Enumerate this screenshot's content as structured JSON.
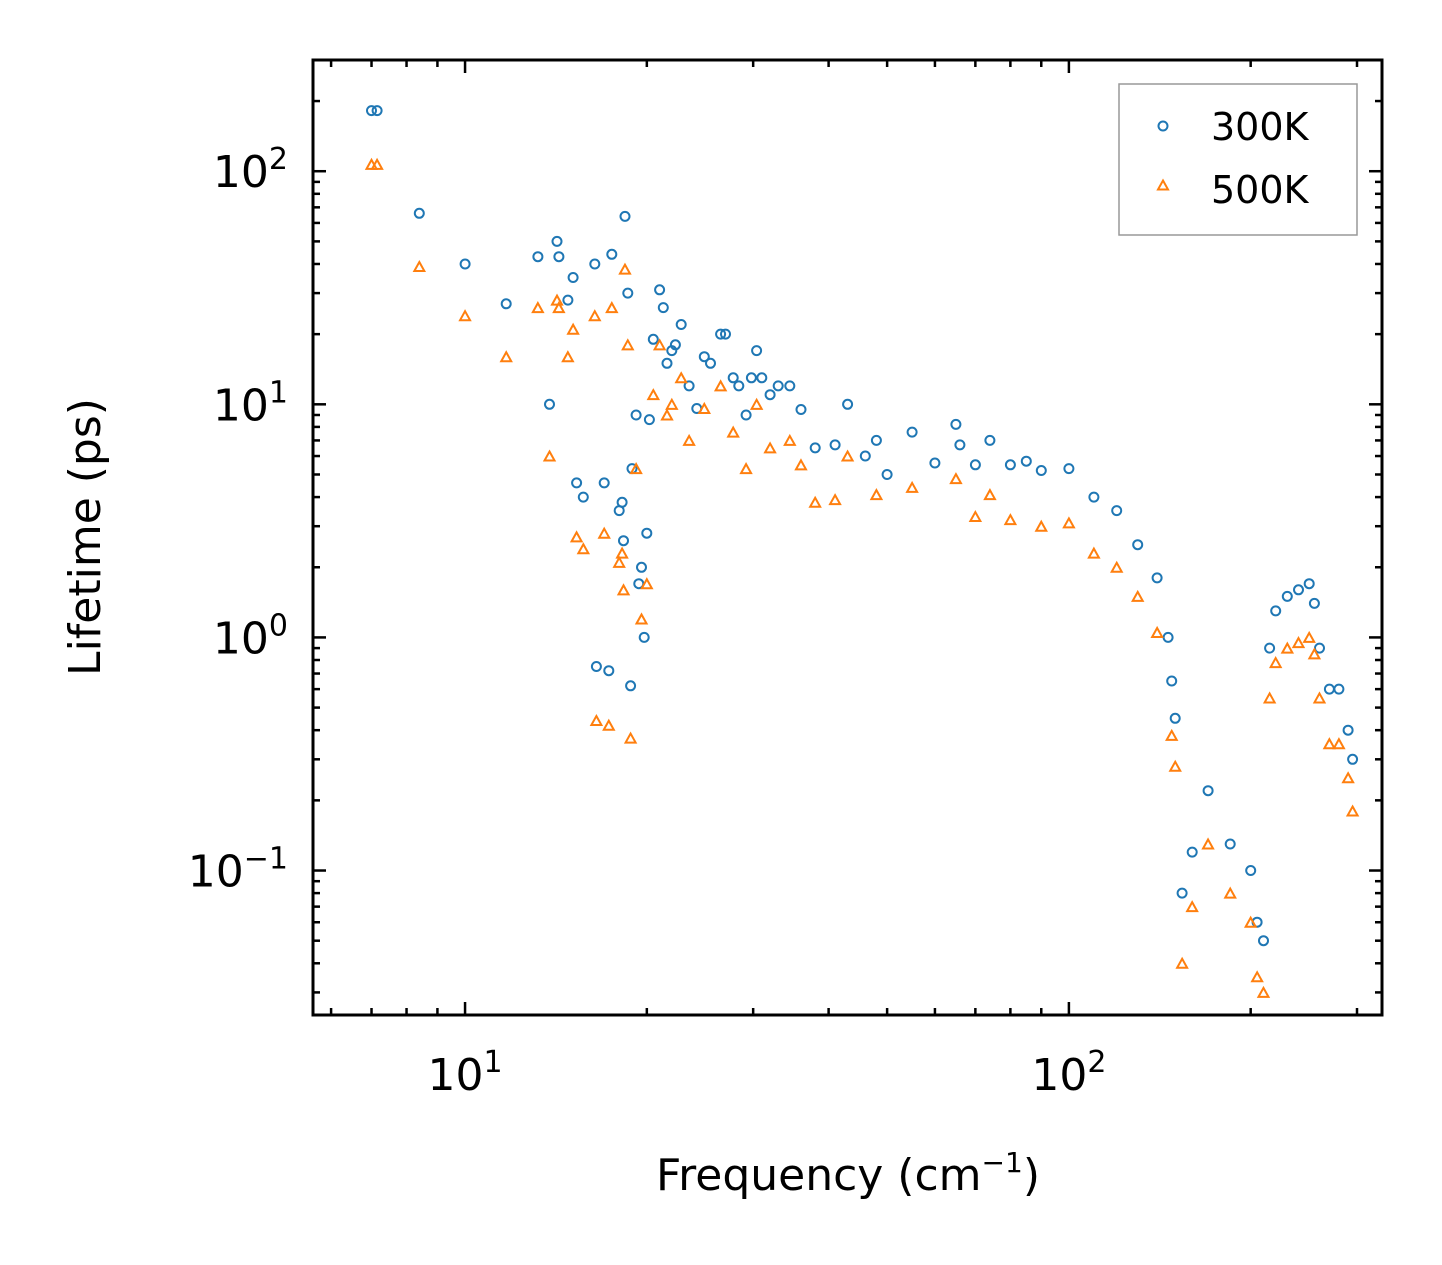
{
  "chart_data": {
    "type": "scatter",
    "title": "",
    "xlabel": "Frequency (cm",
    "xlabel_sup": "−1",
    "xlabel_end": ")",
    "ylabel": "Lifetime (ps)",
    "xscale": "log",
    "yscale": "log",
    "xlim": [
      5.6,
      330
    ],
    "ylim": [
      0.024,
      300
    ],
    "x_ticks": [
      {
        "value": 10,
        "base": "10",
        "exp": "1"
      },
      {
        "value": 100,
        "base": "10",
        "exp": "2"
      }
    ],
    "y_ticks": [
      {
        "value": 0.1,
        "base": "10",
        "exp": "−1"
      },
      {
        "value": 1,
        "base": "10",
        "exp": "0"
      },
      {
        "value": 10,
        "base": "10",
        "exp": "1"
      },
      {
        "value": 100,
        "base": "10",
        "exp": "2"
      }
    ],
    "legend_position": "top-right",
    "series": [
      {
        "name": "300K",
        "color": "#1f77b4",
        "marker": "circle",
        "points": [
          [
            7.0,
            182
          ],
          [
            7.15,
            182
          ],
          [
            8.4,
            66
          ],
          [
            10.0,
            40
          ],
          [
            11.7,
            27
          ],
          [
            13.2,
            43
          ],
          [
            13.8,
            10
          ],
          [
            14.2,
            50
          ],
          [
            14.3,
            43
          ],
          [
            14.8,
            28
          ],
          [
            15.1,
            35
          ],
          [
            15.3,
            4.6
          ],
          [
            15.7,
            4.0
          ],
          [
            16.4,
            40
          ],
          [
            16.5,
            0.75
          ],
          [
            17.0,
            4.6
          ],
          [
            17.3,
            0.72
          ],
          [
            17.5,
            44
          ],
          [
            18.0,
            3.5
          ],
          [
            18.2,
            3.8
          ],
          [
            18.3,
            2.6
          ],
          [
            18.4,
            64
          ],
          [
            18.6,
            30
          ],
          [
            18.8,
            0.62
          ],
          [
            18.9,
            5.3
          ],
          [
            19.2,
            9.0
          ],
          [
            19.4,
            1.7
          ],
          [
            19.6,
            2.0
          ],
          [
            19.8,
            1.0
          ],
          [
            20.0,
            2.8
          ],
          [
            20.2,
            8.6
          ],
          [
            20.5,
            19
          ],
          [
            21.0,
            31
          ],
          [
            21.3,
            26
          ],
          [
            21.6,
            15
          ],
          [
            22.0,
            17
          ],
          [
            22.3,
            18
          ],
          [
            22.8,
            22
          ],
          [
            23.5,
            12
          ],
          [
            24.2,
            9.6
          ],
          [
            24.9,
            16
          ],
          [
            25.5,
            15
          ],
          [
            26.5,
            20
          ],
          [
            27.0,
            20
          ],
          [
            27.8,
            13
          ],
          [
            28.4,
            12
          ],
          [
            29.2,
            9.0
          ],
          [
            29.8,
            13
          ],
          [
            30.4,
            17
          ],
          [
            31.0,
            13
          ],
          [
            32.0,
            11
          ],
          [
            33.0,
            12
          ],
          [
            34.5,
            12
          ],
          [
            36.0,
            9.5
          ],
          [
            38.0,
            6.5
          ],
          [
            41.0,
            6.7
          ],
          [
            43.0,
            10
          ],
          [
            46.0,
            6.0
          ],
          [
            48.0,
            7.0
          ],
          [
            50.0,
            5.0
          ],
          [
            55.0,
            7.6
          ],
          [
            60.0,
            5.6
          ],
          [
            65.0,
            8.2
          ],
          [
            66.0,
            6.7
          ],
          [
            70.0,
            5.5
          ],
          [
            74.0,
            7.0
          ],
          [
            80.0,
            5.5
          ],
          [
            85.0,
            5.7
          ],
          [
            90.0,
            5.2
          ],
          [
            100.0,
            5.3
          ],
          [
            110.0,
            4.0
          ],
          [
            120.0,
            3.5
          ],
          [
            130.0,
            2.5
          ],
          [
            140.0,
            1.8
          ],
          [
            146.0,
            1.0
          ],
          [
            148.0,
            0.65
          ],
          [
            150.0,
            0.45
          ],
          [
            154.0,
            0.08
          ],
          [
            160.0,
            0.12
          ],
          [
            170.0,
            0.22
          ],
          [
            185.0,
            0.13
          ],
          [
            200.0,
            0.1
          ],
          [
            205.0,
            0.06
          ],
          [
            210.0,
            0.05
          ],
          [
            215.0,
            0.9
          ],
          [
            220.0,
            1.3
          ],
          [
            230.0,
            1.5
          ],
          [
            240.0,
            1.6
          ],
          [
            250.0,
            1.7
          ],
          [
            255.0,
            1.4
          ],
          [
            260.0,
            0.9
          ],
          [
            270.0,
            0.6
          ],
          [
            280.0,
            0.6
          ],
          [
            290.0,
            0.4
          ],
          [
            295.0,
            0.3
          ]
        ]
      },
      {
        "name": "500K",
        "color": "#ff7f0e",
        "marker": "triangle",
        "points": [
          [
            7.0,
            107
          ],
          [
            7.15,
            107
          ],
          [
            8.4,
            39
          ],
          [
            10.0,
            24
          ],
          [
            11.7,
            16
          ],
          [
            13.2,
            26
          ],
          [
            13.8,
            6.0
          ],
          [
            14.2,
            28
          ],
          [
            14.3,
            26
          ],
          [
            14.8,
            16
          ],
          [
            15.1,
            21
          ],
          [
            15.3,
            2.7
          ],
          [
            15.7,
            2.4
          ],
          [
            16.4,
            24
          ],
          [
            16.5,
            0.44
          ],
          [
            17.0,
            2.8
          ],
          [
            17.3,
            0.42
          ],
          [
            17.5,
            26
          ],
          [
            18.0,
            2.1
          ],
          [
            18.2,
            2.3
          ],
          [
            18.3,
            1.6
          ],
          [
            18.4,
            38
          ],
          [
            18.6,
            18
          ],
          [
            18.8,
            0.37
          ],
          [
            19.2,
            5.3
          ],
          [
            19.6,
            1.2
          ],
          [
            20.0,
            1.7
          ],
          [
            20.5,
            11
          ],
          [
            21.0,
            18
          ],
          [
            21.6,
            9.0
          ],
          [
            22.0,
            10
          ],
          [
            22.8,
            13
          ],
          [
            23.5,
            7.0
          ],
          [
            24.9,
            9.6
          ],
          [
            26.5,
            12
          ],
          [
            27.8,
            7.6
          ],
          [
            29.2,
            5.3
          ],
          [
            30.4,
            10
          ],
          [
            32.0,
            6.5
          ],
          [
            34.5,
            7.0
          ],
          [
            36.0,
            5.5
          ],
          [
            38.0,
            3.8
          ],
          [
            41.0,
            3.9
          ],
          [
            43.0,
            6.0
          ],
          [
            48.0,
            4.1
          ],
          [
            55.0,
            4.4
          ],
          [
            65.0,
            4.8
          ],
          [
            70.0,
            3.3
          ],
          [
            74.0,
            4.1
          ],
          [
            80.0,
            3.2
          ],
          [
            90.0,
            3.0
          ],
          [
            100.0,
            3.1
          ],
          [
            110.0,
            2.3
          ],
          [
            120.0,
            2.0
          ],
          [
            130.0,
            1.5
          ],
          [
            140.0,
            1.05
          ],
          [
            148.0,
            0.38
          ],
          [
            150.0,
            0.28
          ],
          [
            154.0,
            0.04
          ],
          [
            160.0,
            0.07
          ],
          [
            170.0,
            0.13
          ],
          [
            185.0,
            0.08
          ],
          [
            200.0,
            0.06
          ],
          [
            205.0,
            0.035
          ],
          [
            210.0,
            0.03
          ],
          [
            215.0,
            0.55
          ],
          [
            220.0,
            0.78
          ],
          [
            230.0,
            0.9
          ],
          [
            240.0,
            0.95
          ],
          [
            250.0,
            1.0
          ],
          [
            255.0,
            0.85
          ],
          [
            260.0,
            0.55
          ],
          [
            270.0,
            0.35
          ],
          [
            280.0,
            0.35
          ],
          [
            290.0,
            0.25
          ],
          [
            295.0,
            0.18
          ]
        ]
      }
    ]
  }
}
